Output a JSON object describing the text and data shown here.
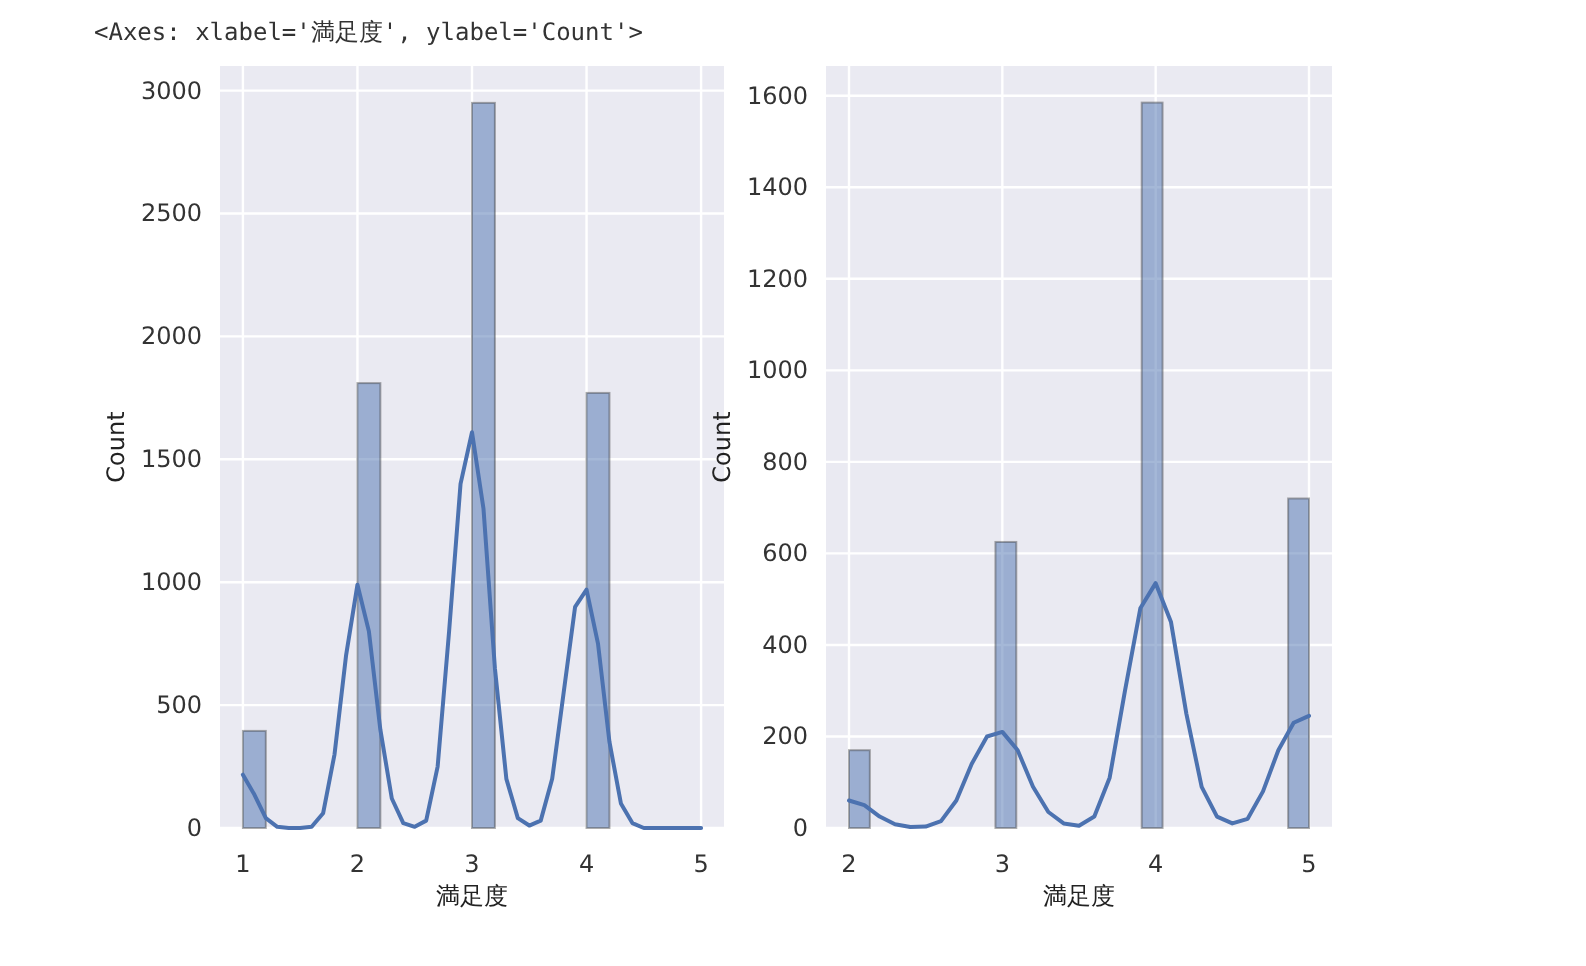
{
  "chart_data": [
    {
      "type": "histogram",
      "xlabel": "満足度",
      "ylabel": "Count",
      "annotations": [
        "<Axes: xlabel='満足度', ylabel='Count'>"
      ],
      "bins": [
        1,
        1.2,
        1.4,
        1.6,
        1.8,
        2,
        2.2,
        2.4,
        2.6,
        2.8,
        3,
        3.2,
        3.4,
        3.6,
        3.8,
        4,
        4.2,
        4.4,
        4.6,
        4.8,
        5
      ],
      "values": [
        395,
        0,
        0,
        0,
        0,
        1810,
        0,
        0,
        0,
        0,
        2950,
        0,
        0,
        0,
        0,
        1770,
        0,
        0,
        0,
        0
      ],
      "color": "#4c72b0",
      "series": [
        {
          "type": "line",
          "color": "#4c72b0",
          "x": [
            1,
            1.1,
            1.2,
            1.3,
            1.4,
            1.5,
            1.6,
            1.7,
            1.8,
            1.9,
            2,
            2.1,
            2.2,
            2.3,
            2.4,
            2.5,
            2.6,
            2.7,
            2.8,
            2.9,
            3,
            3.1,
            3.2,
            3.3,
            3.4,
            3.5,
            3.6,
            3.7,
            3.8,
            3.9,
            4,
            4.1,
            4.2,
            4.3,
            4.4,
            4.5,
            4.75,
            5
          ],
          "values": [
            217,
            136,
            40,
            5,
            0,
            0,
            5,
            60,
            300,
            700,
            990,
            800,
            400,
            120,
            20,
            5,
            30,
            250,
            800,
            1400,
            1610,
            1300,
            650,
            200,
            40,
            10,
            30,
            200,
            550,
            900,
            970,
            750,
            350,
            100,
            20,
            0,
            0,
            0
          ]
        }
      ],
      "xlim": [
        0.8,
        5.2
      ],
      "ylim": [
        0,
        3100
      ],
      "xticks": [
        1,
        2,
        3,
        4,
        5
      ],
      "yticks": [
        0,
        500,
        1000,
        1500,
        2000,
        2500,
        3000
      ],
      "grid": true
    },
    {
      "type": "histogram",
      "xlabel": "満足度",
      "ylabel": "Count",
      "bins": [
        2,
        2.136,
        2.273,
        2.409,
        2.545,
        2.682,
        2.818,
        2.955,
        3.091,
        3.227,
        3.364,
        3.5,
        3.636,
        3.773,
        3.909,
        4.045,
        4.182,
        4.318,
        4.455,
        4.591,
        4.727,
        4.864,
        5
      ],
      "values": [
        170,
        0,
        0,
        0,
        0,
        0,
        0,
        625,
        0,
        0,
        0,
        0,
        0,
        0,
        1585,
        0,
        0,
        0,
        0,
        0,
        0,
        720
      ],
      "color": "#4c72b0",
      "series": [
        {
          "type": "line",
          "color": "#4c72b0",
          "x": [
            2,
            2.1,
            2.2,
            2.3,
            2.4,
            2.5,
            2.6,
            2.7,
            2.8,
            2.9,
            3,
            3.1,
            3.2,
            3.3,
            3.4,
            3.5,
            3.6,
            3.7,
            3.8,
            3.9,
            4,
            4.1,
            4.2,
            4.3,
            4.4,
            4.5,
            4.6,
            4.7,
            4.8,
            4.9,
            5
          ],
          "values": [
            60,
            50,
            25,
            8,
            2,
            3,
            15,
            60,
            140,
            200,
            210,
            170,
            90,
            35,
            10,
            5,
            25,
            110,
            300,
            480,
            535,
            450,
            250,
            90,
            25,
            10,
            20,
            80,
            170,
            230,
            245
          ]
        }
      ],
      "xlim": [
        1.85,
        5.15
      ],
      "ylim": [
        0,
        1665
      ],
      "xticks": [
        2,
        3,
        4,
        5
      ],
      "yticks": [
        0,
        200,
        400,
        600,
        800,
        1000,
        1200,
        1400,
        1600
      ],
      "grid": true
    }
  ]
}
